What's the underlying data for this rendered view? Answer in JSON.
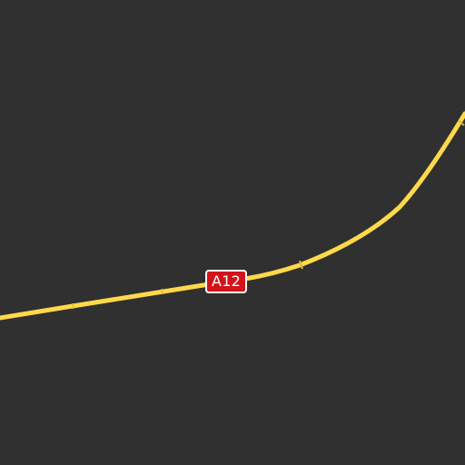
{
  "map": {
    "road_ref": "A12",
    "colors": {
      "background": "#303030",
      "motorway": "#ffd94a",
      "shield_fill": "#d1141b",
      "shield_text": "#ffffff"
    }
  }
}
